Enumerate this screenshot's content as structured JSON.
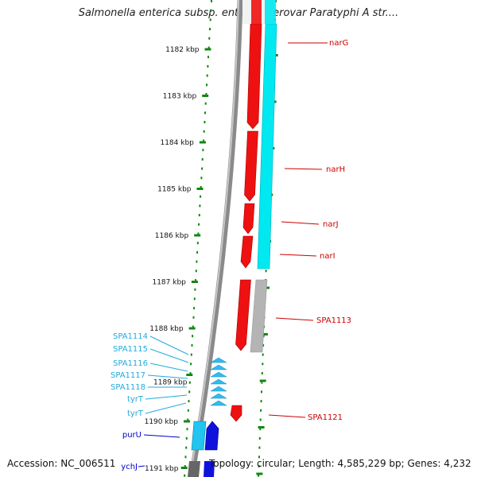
{
  "title": "Salmonella enterica subsp. enterica serovar Paratyphi A str....",
  "footer": {
    "accession": "Accession: NC_006511",
    "topology": "Topology: circular; Length: 4,585,229 bp; Genes: 4,232"
  },
  "colors": {
    "forward_gene": "#ee1111",
    "forward_cds": "#00e8f0",
    "reverse_gene": "#1111dd",
    "reverse_cds": "#22c4f0",
    "trna": "#33bbee",
    "pseudo": "#b4b4b4",
    "backbone": "#8a8a8a",
    "ticks": "#118811",
    "forward_label": "#cc0000",
    "reverse_label": "#0000cc",
    "trna_label": "#22aadd"
  },
  "scale_labels": [
    "1182 kbp",
    "1183 kbp",
    "1184 kbp",
    "1185 kbp",
    "1186 kbp",
    "1187 kbp",
    "1188 kbp",
    "1189 kbp",
    "1190 kbp",
    "1191 kbp"
  ],
  "forward_genes": [
    "narG",
    "narH",
    "narJ",
    "narI",
    "SPA1113",
    "SPA1121"
  ],
  "reverse_genes": [
    "purU",
    "ychJ"
  ],
  "trna_genes": [
    "SPA1114",
    "SPA1115",
    "SPA1116",
    "SPA1117",
    "SPA1118",
    "tyrT",
    "tyrT"
  ]
}
